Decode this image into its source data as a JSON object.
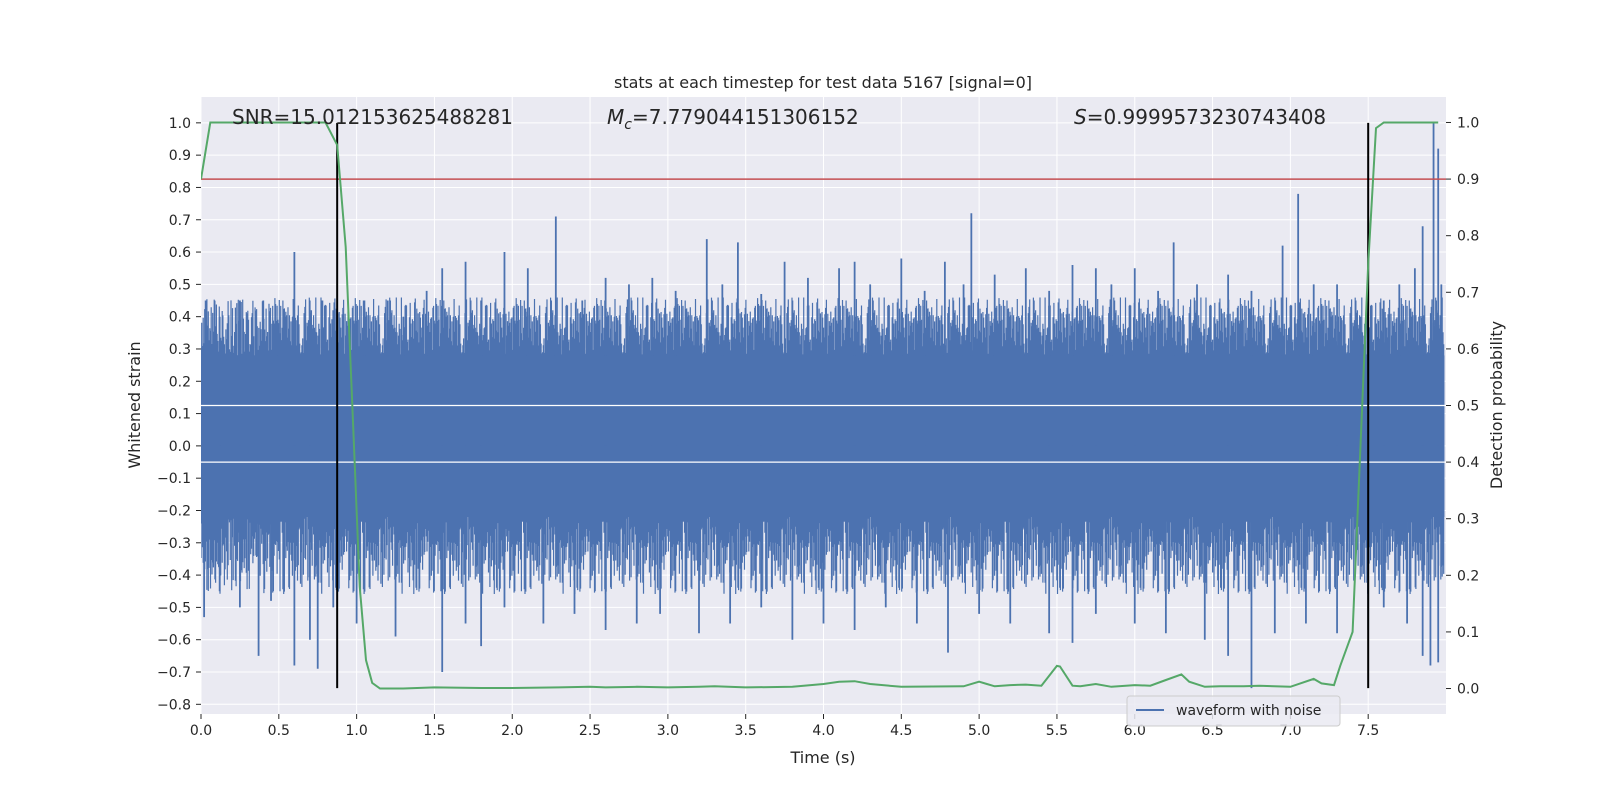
{
  "chart_data": {
    "type": "line",
    "title": "stats at each timestep for test data 5167 [signal=0]",
    "xlabel": "Time (s)",
    "ylabel": "Whitened strain",
    "y2label": "Detection probability",
    "xlim": [
      0.0,
      8.0
    ],
    "ylim": [
      -0.83,
      1.08
    ],
    "y2lim": [
      -0.045,
      1.045
    ],
    "x_ticks": [
      0.0,
      0.5,
      1.0,
      1.5,
      2.0,
      2.5,
      3.0,
      3.5,
      4.0,
      4.5,
      5.0,
      5.5,
      6.0,
      6.5,
      7.0,
      7.5
    ],
    "x_tick_labels": [
      "0.0",
      "0.5",
      "1.0",
      "1.5",
      "2.0",
      "2.5",
      "3.0",
      "3.5",
      "4.0",
      "4.5",
      "5.0",
      "5.5",
      "6.0",
      "6.5",
      "7.0",
      "7.5"
    ],
    "y_ticks": [
      -0.8,
      -0.7,
      -0.6,
      -0.5,
      -0.4,
      -0.3,
      -0.2,
      -0.1,
      0.0,
      0.1,
      0.2,
      0.3,
      0.4,
      0.5,
      0.6,
      0.7,
      0.8,
      0.9,
      1.0
    ],
    "y_tick_labels": [
      "−0.8",
      "−0.7",
      "−0.6",
      "−0.5",
      "−0.4",
      "−0.3",
      "−0.2",
      "−0.1",
      "0.0",
      "0.1",
      "0.2",
      "0.3",
      "0.4",
      "0.5",
      "0.6",
      "0.7",
      "0.8",
      "0.9",
      "1.0"
    ],
    "y2_ticks": [
      0.0,
      0.1,
      0.2,
      0.3,
      0.4,
      0.5,
      0.6,
      0.7,
      0.8,
      0.9,
      1.0
    ],
    "y2_tick_labels": [
      "0.0",
      "0.1",
      "0.2",
      "0.3",
      "0.4",
      "0.5",
      "0.6",
      "0.7",
      "0.8",
      "0.9",
      "1.0"
    ],
    "annotations": {
      "snr": "SNR=15.012153625488281",
      "mc_symbol": "M",
      "mc_sub": "c",
      "mc_value": "=7.779044151306152",
      "s_symbol": "S",
      "s_value": "=0.9999573230743408"
    },
    "threshold_probability": 0.9,
    "vertical_lines_x": [
      0.875,
      7.5
    ],
    "vertical_lines_y_range": [
      -0.75,
      1.0
    ],
    "series": [
      {
        "name": "waveform with noise",
        "role": "strain",
        "color": "#4c72b0",
        "envelope": {
          "band_low": -0.38,
          "band_high": 0.4,
          "dense_low": -0.22,
          "dense_high": 0.28
        },
        "peaks_up": [
          [
            0.03,
            0.45
          ],
          [
            0.12,
            0.4
          ],
          [
            0.25,
            0.45
          ],
          [
            0.33,
            0.4
          ],
          [
            0.4,
            0.45
          ],
          [
            0.5,
            0.38
          ],
          [
            0.6,
            0.6
          ],
          [
            0.7,
            0.42
          ],
          [
            0.78,
            0.45
          ],
          [
            0.85,
            0.42
          ],
          [
            1.05,
            0.45
          ],
          [
            1.2,
            0.45
          ],
          [
            1.3,
            0.4
          ],
          [
            1.45,
            0.48
          ],
          [
            1.55,
            0.55
          ],
          [
            1.7,
            0.57
          ],
          [
            1.8,
            0.45
          ],
          [
            1.95,
            0.6
          ],
          [
            2.1,
            0.55
          ],
          [
            2.28,
            0.71
          ],
          [
            2.45,
            0.45
          ],
          [
            2.6,
            0.52
          ],
          [
            2.75,
            0.5
          ],
          [
            2.9,
            0.52
          ],
          [
            3.05,
            0.48
          ],
          [
            3.25,
            0.64
          ],
          [
            3.35,
            0.5
          ],
          [
            3.45,
            0.63
          ],
          [
            3.6,
            0.47
          ],
          [
            3.75,
            0.57
          ],
          [
            3.9,
            0.52
          ],
          [
            4.1,
            0.55
          ],
          [
            4.2,
            0.57
          ],
          [
            4.3,
            0.5
          ],
          [
            4.5,
            0.58
          ],
          [
            4.65,
            0.48
          ],
          [
            4.78,
            0.57
          ],
          [
            4.9,
            0.5
          ],
          [
            4.95,
            0.72
          ],
          [
            5.1,
            0.53
          ],
          [
            5.3,
            0.55
          ],
          [
            5.45,
            0.48
          ],
          [
            5.6,
            0.56
          ],
          [
            5.75,
            0.55
          ],
          [
            5.85,
            0.5
          ],
          [
            6.0,
            0.55
          ],
          [
            6.15,
            0.48
          ],
          [
            6.25,
            0.63
          ],
          [
            6.4,
            0.5
          ],
          [
            6.6,
            0.53
          ],
          [
            6.75,
            0.48
          ],
          [
            6.95,
            0.62
          ],
          [
            7.05,
            0.78
          ],
          [
            7.15,
            0.5
          ],
          [
            7.3,
            0.5
          ],
          [
            7.45,
            0.4
          ],
          [
            7.6,
            0.45
          ],
          [
            7.7,
            0.5
          ],
          [
            7.8,
            0.55
          ],
          [
            7.85,
            0.68
          ],
          [
            7.92,
            1.0
          ],
          [
            7.95,
            0.92
          ],
          [
            7.97,
            0.5
          ]
        ],
        "peaks_down": [
          [
            0.02,
            -0.53
          ],
          [
            0.12,
            -0.45
          ],
          [
            0.25,
            -0.5
          ],
          [
            0.37,
            -0.65
          ],
          [
            0.45,
            -0.48
          ],
          [
            0.6,
            -0.68
          ],
          [
            0.7,
            -0.6
          ],
          [
            0.75,
            -0.69
          ],
          [
            0.85,
            -0.5
          ],
          [
            1.0,
            -0.55
          ],
          [
            1.25,
            -0.59
          ],
          [
            1.55,
            -0.7
          ],
          [
            1.7,
            -0.55
          ],
          [
            1.8,
            -0.62
          ],
          [
            1.95,
            -0.5
          ],
          [
            2.2,
            -0.55
          ],
          [
            2.4,
            -0.52
          ],
          [
            2.6,
            -0.57
          ],
          [
            2.8,
            -0.55
          ],
          [
            2.95,
            -0.52
          ],
          [
            3.2,
            -0.58
          ],
          [
            3.4,
            -0.55
          ],
          [
            3.6,
            -0.5
          ],
          [
            3.8,
            -0.6
          ],
          [
            4.0,
            -0.55
          ],
          [
            4.2,
            -0.57
          ],
          [
            4.4,
            -0.5
          ],
          [
            4.6,
            -0.55
          ],
          [
            4.8,
            -0.64
          ],
          [
            5.0,
            -0.52
          ],
          [
            5.2,
            -0.55
          ],
          [
            5.45,
            -0.58
          ],
          [
            5.6,
            -0.61
          ],
          [
            5.75,
            -0.52
          ],
          [
            6.0,
            -0.55
          ],
          [
            6.2,
            -0.58
          ],
          [
            6.45,
            -0.6
          ],
          [
            6.6,
            -0.65
          ],
          [
            6.75,
            -0.75
          ],
          [
            6.9,
            -0.58
          ],
          [
            7.1,
            -0.55
          ],
          [
            7.3,
            -0.58
          ],
          [
            7.5,
            -0.57
          ],
          [
            7.6,
            -0.5
          ],
          [
            7.75,
            -0.55
          ],
          [
            7.85,
            -0.65
          ],
          [
            7.9,
            -0.68
          ],
          [
            7.95,
            -0.67
          ]
        ]
      },
      {
        "name": "detection probability",
        "role": "probability",
        "color": "#55a868",
        "x": [
          0.0,
          0.06,
          0.15,
          0.3,
          0.5,
          0.7,
          0.8,
          0.875,
          0.93,
          0.98,
          1.02,
          1.06,
          1.1,
          1.15,
          1.3,
          1.5,
          1.8,
          2.0,
          2.3,
          2.5,
          2.6,
          2.8,
          3.0,
          3.2,
          3.3,
          3.5,
          3.8,
          4.0,
          4.1,
          4.2,
          4.3,
          4.5,
          4.9,
          5.0,
          5.05,
          5.1,
          5.2,
          5.3,
          5.4,
          5.5,
          5.52,
          5.6,
          5.65,
          5.75,
          5.85,
          6.0,
          6.1,
          6.2,
          6.3,
          6.35,
          6.45,
          6.55,
          6.7,
          6.8,
          7.0,
          7.15,
          7.2,
          7.28,
          7.32,
          7.4,
          7.5,
          7.55,
          7.6,
          7.7,
          7.8,
          7.95
        ],
        "y": [
          0.9,
          1.0,
          1.0,
          1.0,
          1.0,
          1.0,
          1.0,
          0.96,
          0.78,
          0.45,
          0.18,
          0.05,
          0.01,
          0.0,
          0.0,
          0.002,
          0.001,
          0.001,
          0.002,
          0.003,
          0.002,
          0.003,
          0.002,
          0.003,
          0.004,
          0.002,
          0.003,
          0.008,
          0.012,
          0.013,
          0.008,
          0.003,
          0.004,
          0.012,
          0.008,
          0.004,
          0.006,
          0.007,
          0.005,
          0.04,
          0.039,
          0.005,
          0.004,
          0.008,
          0.003,
          0.006,
          0.005,
          0.015,
          0.025,
          0.012,
          0.003,
          0.004,
          0.004,
          0.005,
          0.003,
          0.017,
          0.009,
          0.006,
          0.04,
          0.1,
          0.75,
          0.99,
          1.0,
          1.0,
          1.0,
          1.0
        ]
      }
    ],
    "legend": {
      "label": "waveform with noise",
      "loc": "lower-right"
    }
  }
}
